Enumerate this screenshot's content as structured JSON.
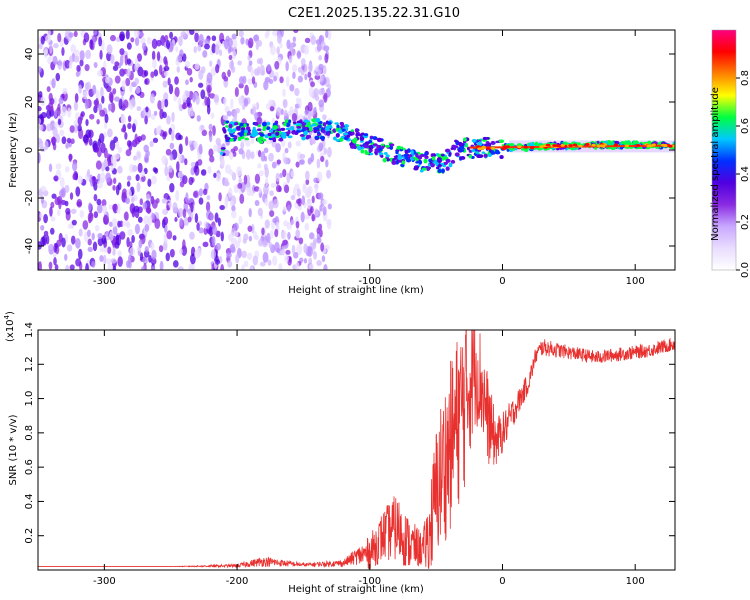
{
  "figure_title": "C2E1.2025.135.22.31.G10",
  "chart_data": [
    {
      "type": "heatmap",
      "title": "C2E1.2025.135.22.31.G10",
      "xlabel": "Height of straight line (km)",
      "ylabel": "Frequency (Hz)",
      "xlim": [
        -350,
        130
      ],
      "ylim": [
        -50,
        50
      ],
      "xticks": [
        -300,
        -200,
        -100,
        0,
        100
      ],
      "yticks": [
        -40,
        -20,
        0,
        20,
        40
      ],
      "colorbar": {
        "label": "Normalized spectral amplitude",
        "range": [
          0,
          1
        ],
        "ticks": [
          "0.0",
          "0.2",
          "0.4",
          "0.6",
          "0.8"
        ],
        "colors": [
          "#ffffff",
          "#e9ddff",
          "#c9a8ff",
          "#8a2be2",
          "#5000e0",
          "#0030ff",
          "#00c8ff",
          "#00ff40",
          "#ffff00",
          "#ff8000",
          "#ff0000",
          "#ff0080"
        ]
      },
      "features": [
        {
          "name": "noise",
          "x_range": [
            -350,
            -130
          ],
          "freq_range": [
            -50,
            50
          ]
        },
        {
          "name": "signal-track",
          "points": [
            [
              -210,
              8
            ],
            [
              -180,
              7
            ],
            [
              -145,
              9
            ],
            [
              -120,
              7
            ],
            [
              -100,
              2
            ],
            [
              -80,
              -2
            ],
            [
              -60,
              -5
            ],
            [
              -45,
              -6
            ],
            [
              -35,
              0
            ],
            [
              -20,
              1
            ],
            [
              0,
              1
            ],
            [
              60,
              2
            ],
            [
              130,
              2
            ]
          ]
        }
      ]
    },
    {
      "type": "line",
      "xlabel": "Height of straight line (km)",
      "ylabel": "SNR (10 * v/v)",
      "y_multiplier": "(x10",
      "y_multiplier_exp": "4",
      "y_multiplier_close": ")",
      "xlim": [
        -350,
        130
      ],
      "ylim": [
        0,
        1.4
      ],
      "xticks": [
        -300,
        -200,
        -100,
        0,
        100
      ],
      "yticks": [
        0.2,
        0.4,
        0.6,
        0.8,
        1.0,
        1.2,
        1.4
      ],
      "ytick_labels": [
        "0.2",
        "0.4",
        "0.6",
        "0.8",
        "1.0",
        "1.2",
        "1.4"
      ],
      "color": "#e8312f",
      "series": [
        {
          "x": [
            -350,
            -300,
            -250,
            -200,
            -180,
            -150,
            -120,
            -110,
            -100,
            -90,
            -80,
            -70,
            -60,
            -55,
            -50,
            -45,
            -40,
            -35,
            -30,
            -25,
            -20,
            -15,
            -10,
            -5,
            0,
            10,
            20,
            25,
            30,
            50,
            70,
            90,
            110,
            130
          ],
          "y": [
            0.02,
            0.02,
            0.02,
            0.025,
            0.05,
            0.03,
            0.04,
            0.08,
            0.1,
            0.2,
            0.25,
            0.15,
            0.12,
            0.2,
            0.45,
            0.6,
            0.7,
            0.85,
            0.95,
            1.1,
            1.2,
            1.05,
            0.85,
            0.75,
            0.8,
            0.95,
            1.1,
            1.25,
            1.3,
            1.27,
            1.24,
            1.26,
            1.28,
            1.32
          ],
          "band": [
            0.0,
            0.0,
            0.0,
            0.01,
            0.03,
            0.01,
            0.02,
            0.05,
            0.1,
            0.15,
            0.2,
            0.15,
            0.1,
            0.25,
            0.4,
            0.45,
            0.5,
            0.5,
            0.55,
            0.45,
            0.35,
            0.3,
            0.25,
            0.15,
            0.12,
            0.08,
            0.06,
            0.05,
            0.05,
            0.04,
            0.04,
            0.04,
            0.04,
            0.04
          ]
        }
      ]
    }
  ]
}
